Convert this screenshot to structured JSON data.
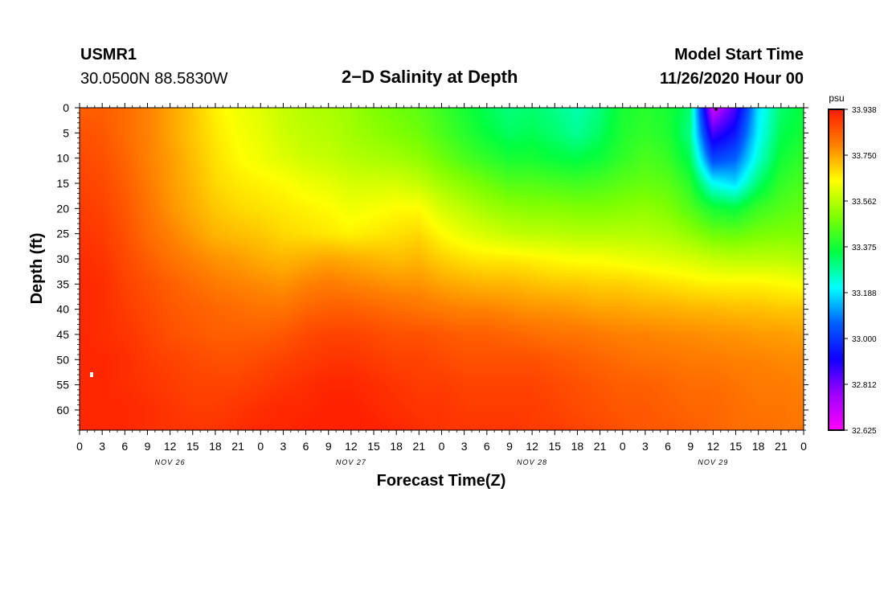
{
  "header": {
    "station": "USMR1",
    "coords": "30.0500N 88.5830W",
    "title": "2−D Salinity at Depth",
    "model_start_label": "Model Start Time",
    "model_start_value": "11/26/2020 Hour 00"
  },
  "chart_data": {
    "type": "heatmap",
    "title": "2−D Salinity at Depth",
    "xlabel": "Forecast Time(Z)",
    "ylabel": "Depth (ft)",
    "x_hours": [
      0,
      3,
      6,
      9,
      12,
      15,
      18,
      21,
      24,
      27,
      30,
      33,
      36,
      39,
      42,
      45,
      48,
      51,
      54,
      57,
      60,
      63,
      66,
      69,
      72,
      75,
      78,
      81,
      84,
      87,
      90,
      93,
      96
    ],
    "x_tick_labels": [
      "0",
      "3",
      "6",
      "9",
      "12",
      "15",
      "18",
      "21",
      "0",
      "3",
      "6",
      "9",
      "12",
      "15",
      "18",
      "21",
      "0",
      "3",
      "6",
      "9",
      "12",
      "15",
      "18",
      "21",
      "0",
      "3",
      "6",
      "9",
      "12",
      "15",
      "18",
      "21",
      "0"
    ],
    "xlim": [
      0,
      96
    ],
    "day_labels": [
      {
        "text": "NOV 26",
        "hour": 12
      },
      {
        "text": "NOV 27",
        "hour": 36
      },
      {
        "text": "NOV 28",
        "hour": 60
      },
      {
        "text": "NOV 29",
        "hour": 84
      }
    ],
    "y_depth_ft": [
      0,
      5,
      10,
      15,
      20,
      25,
      30,
      35,
      40,
      45,
      50,
      55,
      60,
      64
    ],
    "y_tick_labels": [
      "0",
      "5",
      "10",
      "15",
      "20",
      "25",
      "30",
      "35",
      "40",
      "45",
      "50",
      "55",
      "60"
    ],
    "ylim": [
      0,
      64
    ],
    "y_inverted": true,
    "colorbar": {
      "unit": "psu",
      "min": 32.625,
      "max": 33.938,
      "tick_labels": [
        "33.938",
        "33.750",
        "33.562",
        "33.375",
        "33.188",
        "33.000",
        "32.812",
        "32.625"
      ],
      "colors": [
        "#ff1a00",
        "#ff8000",
        "#ffff00",
        "#80ff00",
        "#00ff40",
        "#00ffff",
        "#0060ff",
        "#1000ff",
        "#a000ff",
        "#ff00ff"
      ]
    },
    "salinity": [
      [
        33.84,
        33.84,
        33.82,
        33.79,
        33.75,
        33.71,
        33.66,
        33.63,
        33.61,
        33.58,
        33.56,
        33.55,
        33.53,
        33.5,
        33.48,
        33.46,
        33.42,
        33.38,
        33.34,
        33.31,
        33.32,
        33.3,
        33.27,
        33.31,
        33.38,
        33.4,
        33.38,
        33.32,
        32.7,
        32.86,
        33.18,
        33.32,
        33.36
      ],
      [
        33.86,
        33.85,
        33.82,
        33.79,
        33.75,
        33.71,
        33.67,
        33.64,
        33.62,
        33.59,
        33.57,
        33.56,
        33.54,
        33.52,
        33.5,
        33.48,
        33.44,
        33.4,
        33.36,
        33.33,
        33.34,
        33.32,
        33.29,
        33.33,
        33.39,
        33.41,
        33.39,
        33.3,
        32.86,
        32.95,
        33.2,
        33.34,
        33.38
      ],
      [
        33.87,
        33.86,
        33.83,
        33.79,
        33.76,
        33.72,
        33.68,
        33.65,
        33.63,
        33.61,
        33.59,
        33.58,
        33.56,
        33.55,
        33.54,
        33.52,
        33.48,
        33.44,
        33.41,
        33.38,
        33.38,
        33.36,
        33.35,
        33.37,
        33.41,
        33.44,
        33.42,
        33.34,
        33.02,
        33.06,
        33.24,
        33.37,
        33.41
      ],
      [
        33.88,
        33.87,
        33.84,
        33.8,
        33.76,
        33.73,
        33.69,
        33.67,
        33.66,
        33.65,
        33.63,
        33.62,
        33.6,
        33.6,
        33.6,
        33.58,
        33.54,
        33.51,
        33.48,
        33.45,
        33.45,
        33.44,
        33.43,
        33.44,
        33.46,
        33.47,
        33.46,
        33.4,
        33.22,
        33.18,
        33.32,
        33.41,
        33.44
      ],
      [
        33.89,
        33.88,
        33.85,
        33.81,
        33.77,
        33.74,
        33.71,
        33.69,
        33.68,
        33.67,
        33.66,
        33.65,
        33.63,
        33.64,
        33.65,
        33.65,
        33.6,
        33.57,
        33.54,
        33.52,
        33.51,
        33.51,
        33.5,
        33.5,
        33.51,
        33.52,
        33.5,
        33.45,
        33.38,
        33.36,
        33.42,
        33.45,
        33.47
      ],
      [
        33.9,
        33.89,
        33.86,
        33.82,
        33.79,
        33.76,
        33.73,
        33.72,
        33.71,
        33.69,
        33.68,
        33.67,
        33.66,
        33.67,
        33.68,
        33.69,
        33.65,
        33.62,
        33.6,
        33.58,
        33.57,
        33.57,
        33.56,
        33.56,
        33.56,
        33.56,
        33.55,
        33.52,
        33.48,
        33.47,
        33.49,
        33.5,
        33.5
      ],
      [
        33.91,
        33.9,
        33.87,
        33.84,
        33.81,
        33.79,
        33.77,
        33.76,
        33.74,
        33.73,
        33.74,
        33.75,
        33.74,
        33.73,
        33.72,
        33.73,
        33.7,
        33.68,
        33.67,
        33.67,
        33.66,
        33.65,
        33.64,
        33.64,
        33.63,
        33.62,
        33.61,
        33.6,
        33.58,
        33.57,
        33.57,
        33.57,
        33.56
      ],
      [
        33.92,
        33.91,
        33.88,
        33.86,
        33.84,
        33.82,
        33.8,
        33.79,
        33.78,
        33.77,
        33.79,
        33.8,
        33.79,
        33.78,
        33.77,
        33.77,
        33.75,
        33.74,
        33.73,
        33.73,
        33.72,
        33.71,
        33.71,
        33.7,
        33.7,
        33.69,
        33.68,
        33.67,
        33.66,
        33.66,
        33.66,
        33.65,
        33.64
      ],
      [
        33.92,
        33.91,
        33.89,
        33.87,
        33.85,
        33.84,
        33.83,
        33.82,
        33.81,
        33.81,
        33.83,
        33.84,
        33.84,
        33.83,
        33.82,
        33.81,
        33.8,
        33.79,
        33.79,
        33.78,
        33.77,
        33.77,
        33.76,
        33.75,
        33.75,
        33.74,
        33.74,
        33.73,
        33.73,
        33.72,
        33.72,
        33.71,
        33.71
      ],
      [
        33.92,
        33.91,
        33.9,
        33.88,
        33.86,
        33.85,
        33.84,
        33.84,
        33.84,
        33.85,
        33.87,
        33.88,
        33.88,
        33.87,
        33.86,
        33.86,
        33.85,
        33.84,
        33.84,
        33.83,
        33.82,
        33.81,
        33.81,
        33.8,
        33.79,
        33.79,
        33.78,
        33.78,
        33.77,
        33.77,
        33.76,
        33.76,
        33.75
      ],
      [
        33.92,
        33.92,
        33.91,
        33.89,
        33.88,
        33.87,
        33.86,
        33.86,
        33.87,
        33.88,
        33.89,
        33.9,
        33.9,
        33.89,
        33.88,
        33.88,
        33.87,
        33.86,
        33.86,
        33.86,
        33.86,
        33.85,
        33.84,
        33.83,
        33.82,
        33.81,
        33.81,
        33.8,
        33.8,
        33.79,
        33.79,
        33.78,
        33.78
      ],
      [
        33.92,
        33.92,
        33.91,
        33.9,
        33.89,
        33.88,
        33.88,
        33.88,
        33.89,
        33.9,
        33.91,
        33.92,
        33.92,
        33.91,
        33.9,
        33.89,
        33.89,
        33.88,
        33.88,
        33.88,
        33.88,
        33.87,
        33.86,
        33.85,
        33.84,
        33.84,
        33.83,
        33.82,
        33.82,
        33.81,
        33.8,
        33.8,
        33.79
      ],
      [
        33.92,
        33.92,
        33.92,
        33.91,
        33.9,
        33.89,
        33.89,
        33.9,
        33.91,
        33.92,
        33.92,
        33.93,
        33.93,
        33.92,
        33.91,
        33.9,
        33.9,
        33.89,
        33.89,
        33.89,
        33.89,
        33.88,
        33.87,
        33.86,
        33.85,
        33.85,
        33.84,
        33.83,
        33.83,
        33.82,
        33.81,
        33.81,
        33.8
      ],
      [
        33.92,
        33.92,
        33.92,
        33.91,
        33.9,
        33.9,
        33.9,
        33.91,
        33.92,
        33.92,
        33.93,
        33.93,
        33.93,
        33.93,
        33.92,
        33.91,
        33.9,
        33.9,
        33.9,
        33.9,
        33.89,
        33.89,
        33.88,
        33.87,
        33.86,
        33.85,
        33.85,
        33.84,
        33.83,
        33.82,
        33.82,
        33.81,
        33.81
      ]
    ]
  }
}
